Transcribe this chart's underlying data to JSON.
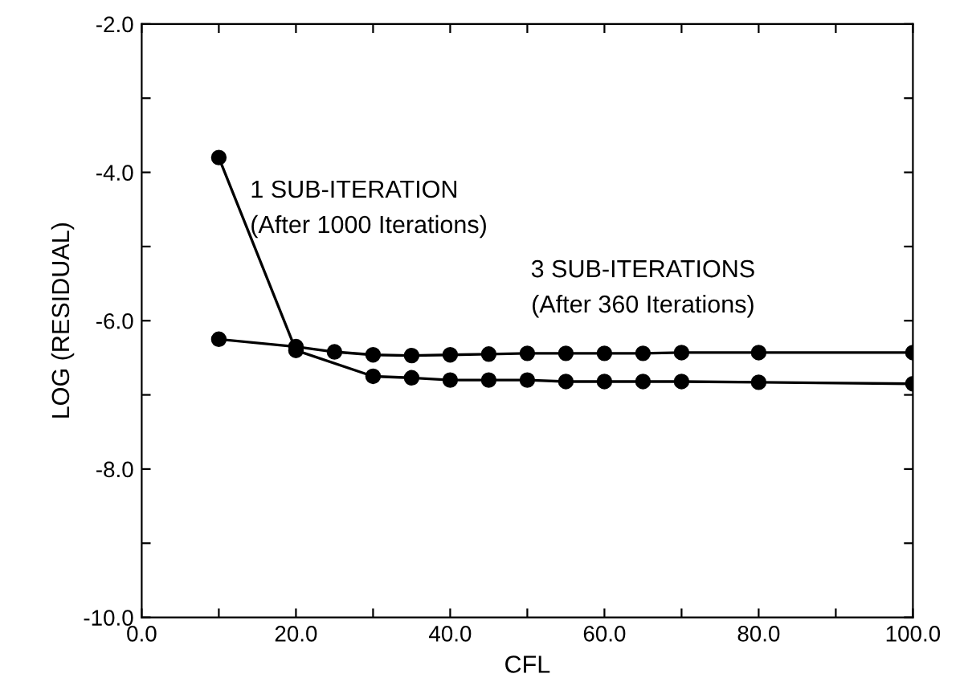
{
  "chart_data": {
    "type": "line",
    "xlabel": "CFL",
    "ylabel": "LOG (RESIDUAL)",
    "xlim": [
      0,
      100
    ],
    "ylim": [
      -10,
      -2
    ],
    "xticks": [
      {
        "value": 0,
        "label": "0.0"
      },
      {
        "value": 10,
        "label": null
      },
      {
        "value": 20,
        "label": "20.0"
      },
      {
        "value": 30,
        "label": null
      },
      {
        "value": 40,
        "label": "40.0"
      },
      {
        "value": 50,
        "label": null
      },
      {
        "value": 60,
        "label": "60.0"
      },
      {
        "value": 70,
        "label": null
      },
      {
        "value": 80,
        "label": "80.0"
      },
      {
        "value": 90,
        "label": null
      },
      {
        "value": 100,
        "label": "100.0"
      }
    ],
    "yticks": [
      {
        "value": -10,
        "label": "-10.0"
      },
      {
        "value": -9,
        "label": null
      },
      {
        "value": -8,
        "label": "-8.0"
      },
      {
        "value": -7,
        "label": null
      },
      {
        "value": -6,
        "label": "-6.0"
      },
      {
        "value": -5,
        "label": null
      },
      {
        "value": -4,
        "label": "-4.0"
      },
      {
        "value": -3,
        "label": null
      },
      {
        "value": -2,
        "label": "-2.0"
      }
    ],
    "marker": "circle",
    "line_style": "solid",
    "grid": false,
    "legend": false,
    "series": [
      {
        "name": "1 SUB-ITERATION\n(After 1000 Iterations)",
        "color": "#000000",
        "x": [
          10,
          20,
          30,
          35,
          40,
          45,
          50,
          55,
          60,
          65,
          70,
          80,
          100
        ],
        "values": [
          -3.8,
          -6.4,
          -6.75,
          -6.77,
          -6.8,
          -6.8,
          -6.8,
          -6.82,
          -6.82,
          -6.82,
          -6.82,
          -6.83,
          -6.85
        ]
      },
      {
        "name": "3 SUB-ITERATIONS\n(After 360 Iterations)",
        "color": "#000000",
        "x": [
          10,
          20,
          25,
          30,
          35,
          40,
          45,
          50,
          55,
          60,
          65,
          70,
          80,
          100
        ],
        "values": [
          -6.25,
          -6.35,
          -6.42,
          -6.46,
          -6.47,
          -6.46,
          -6.45,
          -6.44,
          -6.44,
          -6.44,
          -6.44,
          -6.43,
          -6.43,
          -6.43
        ]
      }
    ]
  }
}
